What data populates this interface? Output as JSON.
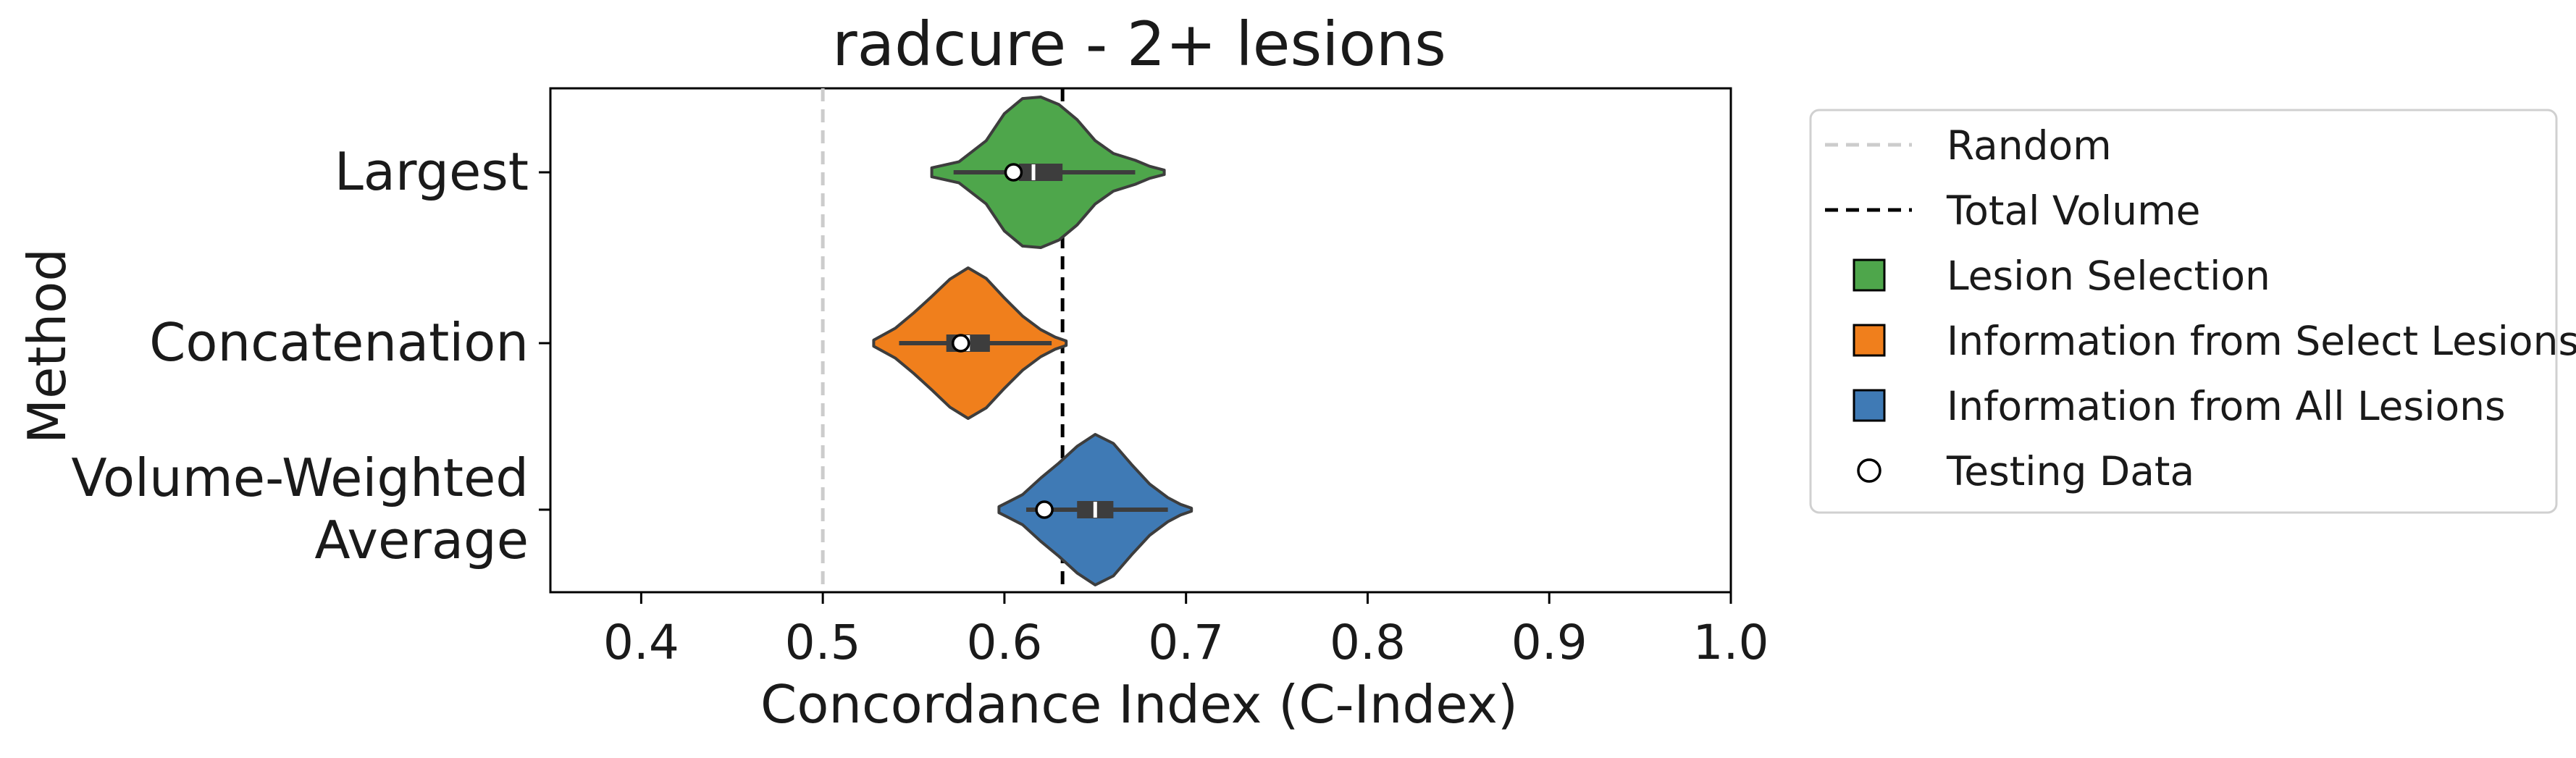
{
  "chart_data": {
    "type": "violin",
    "title": "radcure - 2+ lesions",
    "xlabel": "Concordance Index (C-Index)",
    "ylabel": "Method",
    "xlim": [
      0.35,
      1.0
    ],
    "xticks": [
      0.4,
      0.5,
      0.6,
      0.7,
      0.8,
      0.9,
      1.0
    ],
    "xtick_labels": [
      "0.4",
      "0.5",
      "0.6",
      "0.7",
      "0.8",
      "0.9",
      "1.0"
    ],
    "grid": false,
    "legend_position": "outside-right",
    "reference_lines": [
      {
        "name": "Random",
        "value": 0.5,
        "style": "dashed",
        "color": "#cccccc"
      },
      {
        "name": "Total Volume",
        "value": 0.632,
        "style": "dashed",
        "color": "#000000"
      }
    ],
    "categories": [
      {
        "label_lines": [
          "Largest"
        ],
        "group": "Lesion Selection",
        "color": "#4ea64b",
        "min": 0.56,
        "max": 0.688,
        "q1": 0.608,
        "median": 0.616,
        "q3": 0.632,
        "whisker_low": 0.572,
        "whisker_high": 0.672,
        "testing": 0.605,
        "density_mode": 0.612,
        "density": [
          [
            0.56,
            0.06
          ],
          [
            0.575,
            0.14
          ],
          [
            0.59,
            0.42
          ],
          [
            0.6,
            0.78
          ],
          [
            0.61,
            0.98
          ],
          [
            0.62,
            1.0
          ],
          [
            0.63,
            0.9
          ],
          [
            0.64,
            0.7
          ],
          [
            0.65,
            0.42
          ],
          [
            0.66,
            0.25
          ],
          [
            0.672,
            0.16
          ],
          [
            0.68,
            0.08
          ],
          [
            0.688,
            0.03
          ]
        ]
      },
      {
        "label_lines": [
          "Concatenation"
        ],
        "group": "Information from Select Lesions",
        "color": "#f07f1c",
        "min": 0.528,
        "max": 0.634,
        "q1": 0.568,
        "median": 0.58,
        "q3": 0.592,
        "whisker_low": 0.542,
        "whisker_high": 0.626,
        "testing": 0.576,
        "density_mode": 0.58,
        "density": [
          [
            0.528,
            0.04
          ],
          [
            0.54,
            0.2
          ],
          [
            0.55,
            0.4
          ],
          [
            0.56,
            0.62
          ],
          [
            0.57,
            0.85
          ],
          [
            0.58,
            1.0
          ],
          [
            0.59,
            0.86
          ],
          [
            0.6,
            0.6
          ],
          [
            0.61,
            0.36
          ],
          [
            0.62,
            0.18
          ],
          [
            0.628,
            0.08
          ],
          [
            0.634,
            0.03
          ]
        ]
      },
      {
        "label_lines": [
          "Volume-Weighted",
          "Average"
        ],
        "group": "Information from All Lesions",
        "color": "#3f7ab5",
        "min": 0.597,
        "max": 0.703,
        "q1": 0.64,
        "median": 0.65,
        "q3": 0.66,
        "whisker_low": 0.612,
        "whisker_high": 0.69,
        "testing": 0.622,
        "density_mode": 0.652,
        "density": [
          [
            0.597,
            0.04
          ],
          [
            0.61,
            0.2
          ],
          [
            0.62,
            0.42
          ],
          [
            0.63,
            0.62
          ],
          [
            0.64,
            0.84
          ],
          [
            0.65,
            1.0
          ],
          [
            0.66,
            0.88
          ],
          [
            0.67,
            0.6
          ],
          [
            0.68,
            0.34
          ],
          [
            0.69,
            0.16
          ],
          [
            0.697,
            0.07
          ],
          [
            0.703,
            0.02
          ]
        ]
      }
    ],
    "legend": [
      {
        "label": "Random",
        "kind": "line-dashed",
        "color": "#cccccc"
      },
      {
        "label": "Total Volume",
        "kind": "line-dashed",
        "color": "#000000"
      },
      {
        "label": "Lesion Selection",
        "kind": "square",
        "color": "#4ea64b"
      },
      {
        "label": "Information from Select Lesions",
        "kind": "square",
        "color": "#f07f1c"
      },
      {
        "label": "Information from All Lesions",
        "kind": "square",
        "color": "#3f7ab5"
      },
      {
        "label": "Testing Data",
        "kind": "circle",
        "color": "#ffffff"
      }
    ]
  }
}
